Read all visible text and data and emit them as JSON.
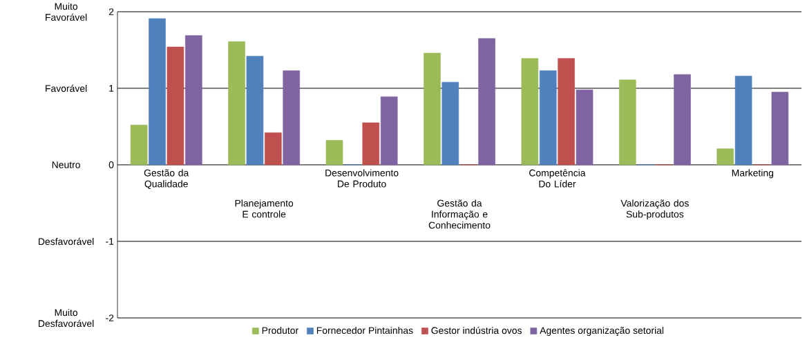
{
  "chart_data": {
    "type": "bar",
    "categories": [
      "Gestão da Qualidade",
      "Planejamento E controle",
      "Desenvolvimento De Produto",
      "Gestão da Informação e Conhecimento",
      "Competência Do Líder",
      "Valorização dos Sub-produtos",
      "Marketing"
    ],
    "series": [
      {
        "name": "Produtor",
        "color": "#9bbb59",
        "values": [
          0.52,
          1.61,
          0.32,
          1.46,
          1.39,
          1.11,
          0.21
        ]
      },
      {
        "name": "Fornecedor Pintainhas",
        "color": "#4f81bd",
        "values": [
          1.91,
          1.42,
          0,
          1.08,
          1.23,
          0,
          1.16
        ]
      },
      {
        "name": "Gestor indústria ovos",
        "color": "#c0504d",
        "values": [
          1.54,
          0.42,
          0.55,
          0,
          1.39,
          0,
          0
        ]
      },
      {
        "name": "Agentes organização setorial",
        "color": "#8064a2",
        "values": [
          1.69,
          1.23,
          0.89,
          1.65,
          0.98,
          1.18,
          0.95
        ]
      }
    ],
    "ylim": [
      -2,
      2
    ],
    "yticks": [
      -2,
      -1,
      0,
      1,
      2
    ],
    "grid": "y",
    "legend": "bottom",
    "annotations": [
      "Muito Favorável",
      "Favorável",
      "Neutro",
      "Desfavorável",
      "Muito Desfavorável"
    ]
  }
}
